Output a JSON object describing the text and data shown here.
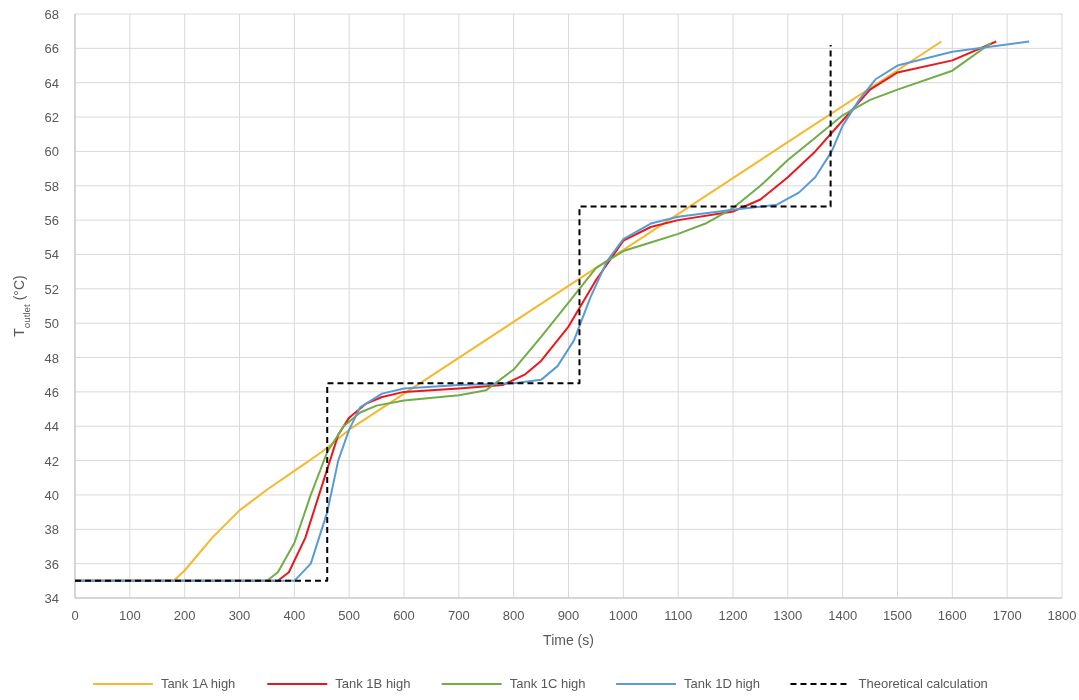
{
  "chart_data": {
    "type": "line",
    "xlabel": "Time (s)",
    "ylabel": "T$_{outlet}$ (°C)",
    "xlim": [
      0,
      1800
    ],
    "ylim": [
      34,
      68
    ],
    "xticks": [
      0,
      100,
      200,
      300,
      400,
      500,
      600,
      700,
      800,
      900,
      1000,
      1100,
      1200,
      1300,
      1400,
      1500,
      1600,
      1700,
      1800
    ],
    "yticks": [
      34,
      36,
      38,
      40,
      42,
      44,
      46,
      48,
      50,
      52,
      54,
      56,
      58,
      60,
      62,
      64,
      66,
      68
    ],
    "grid": true,
    "legend": "bottom",
    "marker": "none",
    "series": [
      {
        "name": "Tank 1A high",
        "color": "#f5b82e",
        "line_style": "solid",
        "x": [
          0,
          180,
          200,
          250,
          300,
          350,
          400,
          450,
          500,
          1580
        ],
        "values": [
          35,
          35,
          35.6,
          37.5,
          39.1,
          40.3,
          41.4,
          42.5,
          43.8,
          66.4
        ]
      },
      {
        "name": "Tank 1B high",
        "color": "#e8191e",
        "line_style": "solid",
        "x": [
          0,
          370,
          390,
          420,
          450,
          480,
          500,
          530,
          560,
          600,
          700,
          780,
          820,
          850,
          900,
          950,
          1000,
          1050,
          1100,
          1200,
          1250,
          1300,
          1350,
          1400,
          1450,
          1500,
          1600,
          1680
        ],
        "values": [
          35,
          35,
          35.5,
          37.5,
          40.5,
          43.5,
          44.5,
          45.3,
          45.7,
          46,
          46.2,
          46.4,
          47,
          47.8,
          49.8,
          52.5,
          54.8,
          55.6,
          56,
          56.5,
          57.2,
          58.5,
          60,
          61.8,
          63.6,
          64.6,
          65.3,
          66.4
        ]
      },
      {
        "name": "Tank 1C high",
        "color": "#70ad47",
        "line_style": "solid",
        "x": [
          0,
          350,
          370,
          400,
          430,
          460,
          490,
          520,
          550,
          600,
          700,
          750,
          800,
          850,
          900,
          950,
          1000,
          1050,
          1100,
          1150,
          1200,
          1250,
          1300,
          1350,
          1400,
          1450,
          1500,
          1600,
          1670
        ],
        "values": [
          35,
          35,
          35.5,
          37.2,
          40,
          42.5,
          44,
          44.8,
          45.2,
          45.5,
          45.8,
          46.1,
          47.3,
          49.2,
          51.2,
          53.2,
          54.2,
          54.7,
          55.2,
          55.8,
          56.7,
          58,
          59.5,
          60.8,
          62.1,
          63,
          63.6,
          64.7,
          66.3
        ]
      },
      {
        "name": "Tank 1D high",
        "color": "#5b9bd5",
        "line_style": "solid",
        "x": [
          0,
          400,
          430,
          460,
          480,
          500,
          520,
          560,
          600,
          700,
          800,
          850,
          880,
          910,
          940,
          970,
          1000,
          1050,
          1100,
          1200,
          1280,
          1320,
          1350,
          1380,
          1400,
          1430,
          1460,
          1500,
          1600,
          1740
        ],
        "values": [
          35,
          35,
          36,
          39,
          42,
          43.8,
          45.1,
          45.9,
          46.2,
          46.4,
          46.5,
          46.7,
          47.5,
          49,
          51.5,
          53.6,
          54.9,
          55.8,
          56.2,
          56.6,
          56.9,
          57.6,
          58.5,
          60,
          61.5,
          63,
          64.2,
          65,
          65.8,
          66.4
        ]
      },
      {
        "name": "Theoretical calculation",
        "color": "#000000",
        "line_style": "dashed",
        "x": [
          0,
          460,
          460,
          920,
          920,
          1378,
          1378
        ],
        "values": [
          35,
          35,
          46.5,
          46.5,
          56.8,
          56.8,
          66.2
        ]
      }
    ]
  }
}
